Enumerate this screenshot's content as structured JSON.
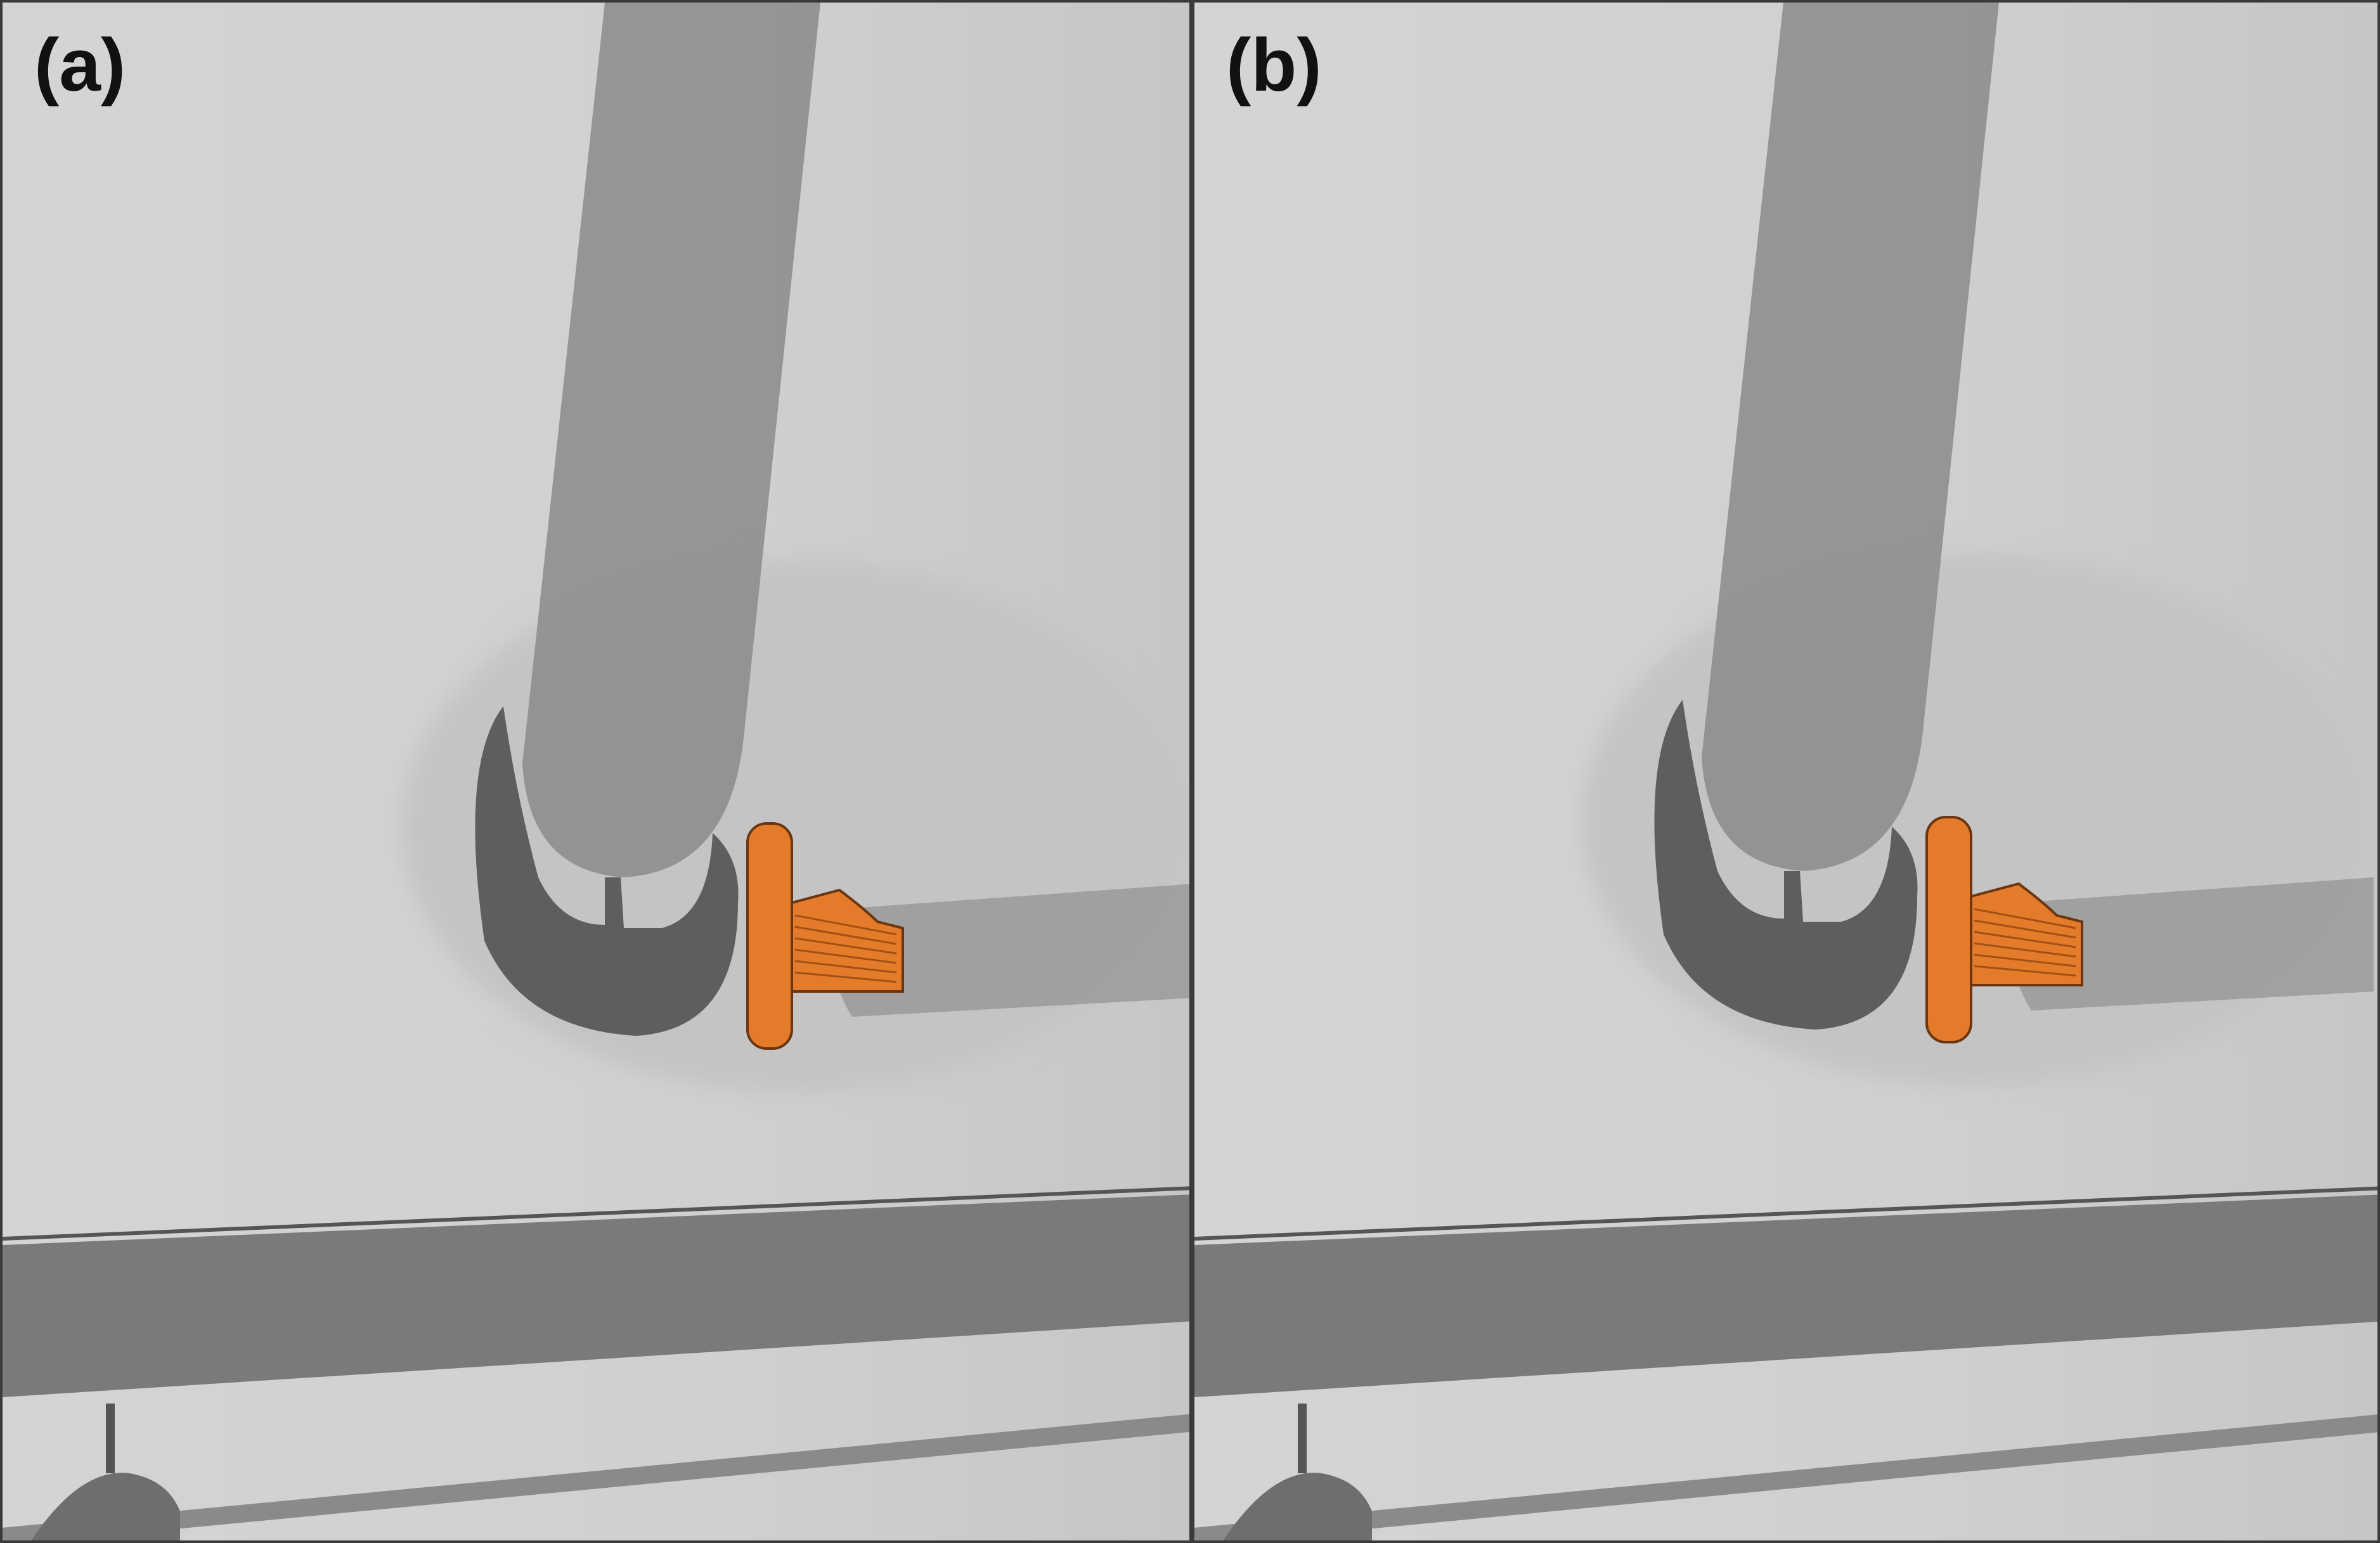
{
  "figure": {
    "panels": [
      {
        "label": "(a)"
      },
      {
        "label": "(b)"
      }
    ]
  },
  "colors": {
    "background": "#d3d3d3",
    "bone": "#8e8e8e",
    "implant": "#5e5e5e",
    "plate": "#7a7a7a",
    "overlay_orange": "#e37b2a",
    "label_text": "#111111"
  }
}
